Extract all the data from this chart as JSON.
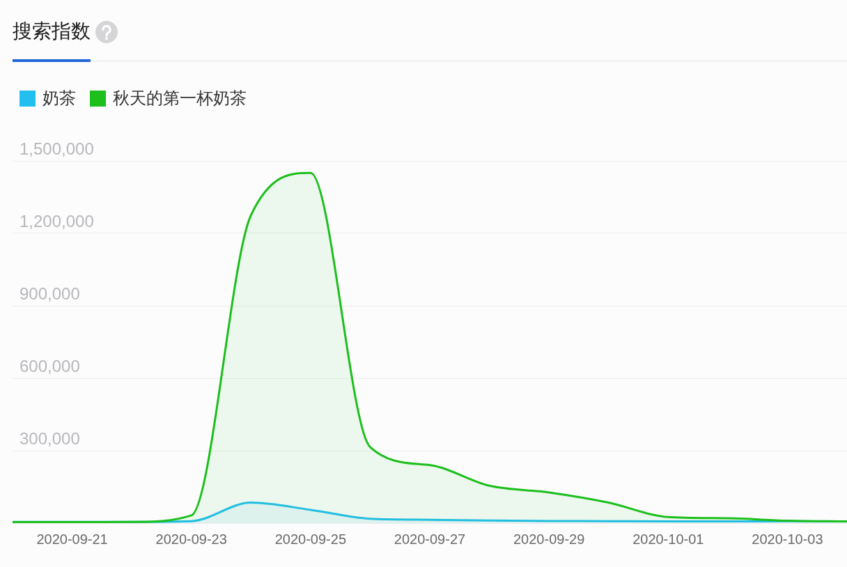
{
  "chart_data": {
    "type": "area",
    "title": "搜索指数",
    "legend": "top left",
    "grid": "y",
    "marker": "none",
    "x": [
      "2020-09-20",
      "2020-09-21",
      "2020-09-22",
      "2020-09-23",
      "2020-09-24",
      "2020-09-25",
      "2020-09-26",
      "2020-09-27",
      "2020-09-28",
      "2020-09-29",
      "2020-09-30",
      "2020-10-01",
      "2020-10-02",
      "2020-10-03",
      "2020-10-04"
    ],
    "xlim": [
      "2020-09-20",
      "2020-10-04"
    ],
    "xticks": [
      "2020-09-21",
      "2020-09-23",
      "2020-09-25",
      "2020-09-27",
      "2020-09-29",
      "2020-10-01",
      "2020-10-03"
    ],
    "ylim": [
      0,
      1500000
    ],
    "yticks": [
      {
        "value": 0,
        "label": null
      },
      {
        "value": 300000,
        "label": "300,000"
      },
      {
        "value": 600000,
        "label": "600,000"
      },
      {
        "value": 900000,
        "label": "900,000"
      },
      {
        "value": 1200000,
        "label": "1,200,000"
      },
      {
        "value": 1500000,
        "label": "1,500,000"
      }
    ],
    "series": [
      {
        "name": "奶茶",
        "color": "#22bff0",
        "values": [
          5000,
          5000,
          5000,
          8000,
          85000,
          55000,
          18000,
          14000,
          11000,
          9000,
          8000,
          7000,
          7000,
          8000,
          7000
        ]
      },
      {
        "name": "秋天的第一杯奶茶",
        "color": "#1cbf1c",
        "values": [
          4000,
          4000,
          5000,
          32000,
          1275000,
          1450000,
          315000,
          240000,
          155000,
          127000,
          85000,
          25000,
          20000,
          10000,
          7000
        ]
      }
    ]
  }
}
